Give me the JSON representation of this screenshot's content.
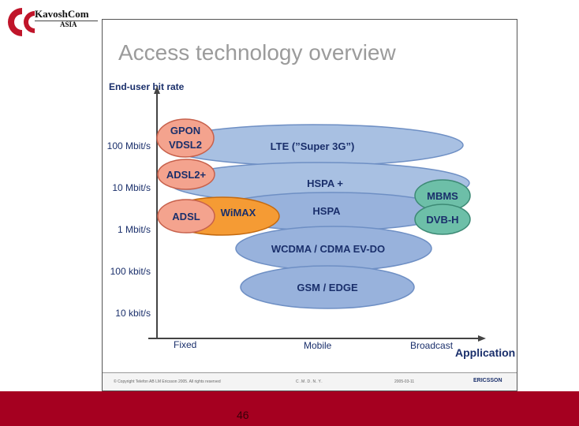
{
  "logo": {
    "name": "KavoshCom",
    "sub": "ASIA"
  },
  "slide": {
    "title": "Access technology overview",
    "y_axis_title": "End-user bit rate",
    "x_axis_title": "Application",
    "y_ticks": [
      "100 Mbit/s",
      "10 Mbit/s",
      "1 Mbit/s",
      "100 kbit/s",
      "10 kbit/s"
    ],
    "x_categories": [
      "Fixed",
      "Mobile",
      "Broadcast"
    ],
    "technologies": {
      "lte": "LTE (”Super 3G”)",
      "hspa_plus": "HSPA +",
      "hspa": "HSPA",
      "wcdma": "WCDMA / CDMA EV-DO",
      "gsm": "GSM / EDGE",
      "wimax": "WiMAX",
      "gpon_vdsl2_line1": "GPON",
      "gpon_vdsl2_line2": "VDSL2",
      "adsl2plus": "ADSL2+",
      "adsl": "ADSL",
      "mbms": "MBMS",
      "dvbh": "DVB-H"
    },
    "footer": {
      "copyright": "© Copyright Telefon AB LM Ericsson 2005. All rights reserved",
      "code": "C.M.D.N.Y.",
      "date": "2005-03-11",
      "brand": "ERICSSON"
    },
    "colors": {
      "blue_fill": "#a8c0e2",
      "blue_stroke": "#6e8fc4",
      "salmon_fill": "#f4a38e",
      "salmon_stroke": "#c7614c",
      "orange_fill": "#f59b34",
      "green_fill": "#6dbfa8",
      "text_navy": "#1a2f6b"
    }
  },
  "page_number": "46"
}
